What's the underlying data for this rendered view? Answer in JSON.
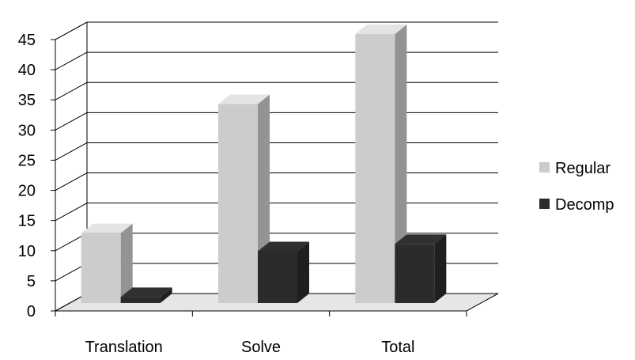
{
  "chart_data": {
    "type": "bar",
    "style": "3d-clustered-column",
    "categories": [
      "Translation",
      "Solve",
      "Total"
    ],
    "series": [
      {
        "name": "Regular",
        "values": [
          11.6,
          33,
          44.6
        ],
        "color": "#cccccc"
      },
      {
        "name": "Decomp",
        "values": [
          1,
          8.6,
          9.8
        ],
        "color": "#2b2b2b"
      }
    ],
    "yticks": [
      0,
      5,
      10,
      15,
      20,
      25,
      30,
      35,
      40,
      45
    ],
    "ylim": [
      0,
      45
    ],
    "grid": true,
    "legend": "right"
  }
}
